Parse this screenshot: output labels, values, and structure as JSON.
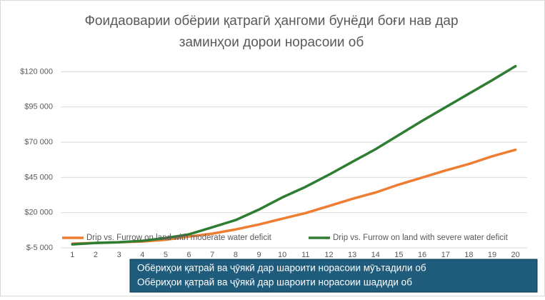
{
  "chart_data": {
    "type": "line",
    "title": [
      "Фоидаоварии обёрии қатрагӣ ҳангоми бунёди боғи нав дар",
      "заминҳои дорои норасоии об"
    ],
    "categories": [
      "1",
      "2",
      "3",
      "4",
      "5",
      "6",
      "7",
      "8",
      "9",
      "10",
      "11",
      "12",
      "13",
      "14",
      "15",
      "16",
      "17",
      "18",
      "19",
      "20"
    ],
    "series": [
      {
        "name": "Drip vs. Furrow on land with moderate water deficit",
        "color": "#ed7d31",
        "values": [
          -2000,
          -1500,
          -1000,
          -500,
          800,
          3000,
          5100,
          8100,
          11600,
          15700,
          19700,
          24700,
          29800,
          34300,
          39900,
          44900,
          49900,
          54500,
          60000,
          64600
        ]
      },
      {
        "name": "Drip vs. Furrow on land with severe water deficit",
        "color": "#2e7d32",
        "values": [
          -2500,
          -1500,
          -1000,
          0,
          2000,
          4600,
          9600,
          14700,
          22200,
          30800,
          38300,
          46900,
          56000,
          65000,
          75100,
          85200,
          94800,
          104400,
          114000,
          124000
        ]
      }
    ],
    "ylim": [
      -5000,
      125000
    ],
    "yticks": [
      {
        "value": -5000,
        "label": "$-5 000"
      },
      {
        "value": 20000,
        "label": "$20 000"
      },
      {
        "value": 45000,
        "label": "$45 000"
      },
      {
        "value": 70000,
        "label": "$70 000"
      },
      {
        "value": 95000,
        "label": "$95 000"
      },
      {
        "value": 120000,
        "label": "$120 000"
      }
    ],
    "grid": true,
    "legend": "bottom",
    "annotations": [
      "Обёриҳои қатрай ва ҷӯякӣ дар шароити норасоии мӯътадили об",
      "Обёриҳои қатрай ва ҷӯякӣ дар шароити норасоии шадиди об"
    ]
  }
}
